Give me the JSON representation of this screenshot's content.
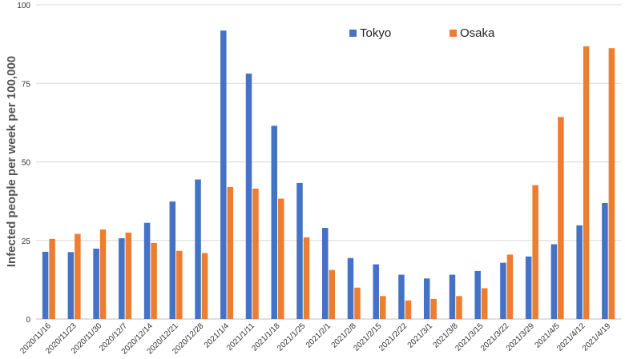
{
  "chart_data": {
    "type": "bar",
    "title": "",
    "xlabel": "",
    "ylabel": "Infected people per week per 100,000",
    "ylim": [
      0,
      100
    ],
    "yticks": [
      0,
      25,
      50,
      75,
      100
    ],
    "grid": true,
    "legend_position": "top-right",
    "categories": [
      "2020/11/16",
      "2020/11/23",
      "2020/11/30",
      "2020/12/7",
      "2020/12/14",
      "2020/12/21",
      "2020/12/28",
      "2021/1/4",
      "2021/1/11",
      "2021/1/18",
      "2021/1/25",
      "2021/2/1",
      "2021/2/8",
      "2021/2/15",
      "2021/2/22",
      "2021/3/1",
      "2021/3/8",
      "2021/3/15",
      "2021/3/22",
      "2021/3/29",
      "2021/4/5",
      "2021/4/12",
      "2021/4/19"
    ],
    "series": [
      {
        "name": "Tokyo",
        "color": "#4472C4",
        "values": [
          21.4,
          21.3,
          22.4,
          25.7,
          30.6,
          37.4,
          44.4,
          91.8,
          78.1,
          61.5,
          43.3,
          29.0,
          19.4,
          17.4,
          14.1,
          12.9,
          14.1,
          15.3,
          17.9,
          19.9,
          23.8,
          29.8,
          36.9
        ]
      },
      {
        "name": "Osaka",
        "color": "#ED7D31",
        "values": [
          25.5,
          27.1,
          28.5,
          27.5,
          24.2,
          21.7,
          21.0,
          42.0,
          41.5,
          38.3,
          26.0,
          15.6,
          10.0,
          7.3,
          5.9,
          6.4,
          7.3,
          9.8,
          20.5,
          42.6,
          64.3,
          86.8,
          86.2
        ]
      }
    ]
  }
}
